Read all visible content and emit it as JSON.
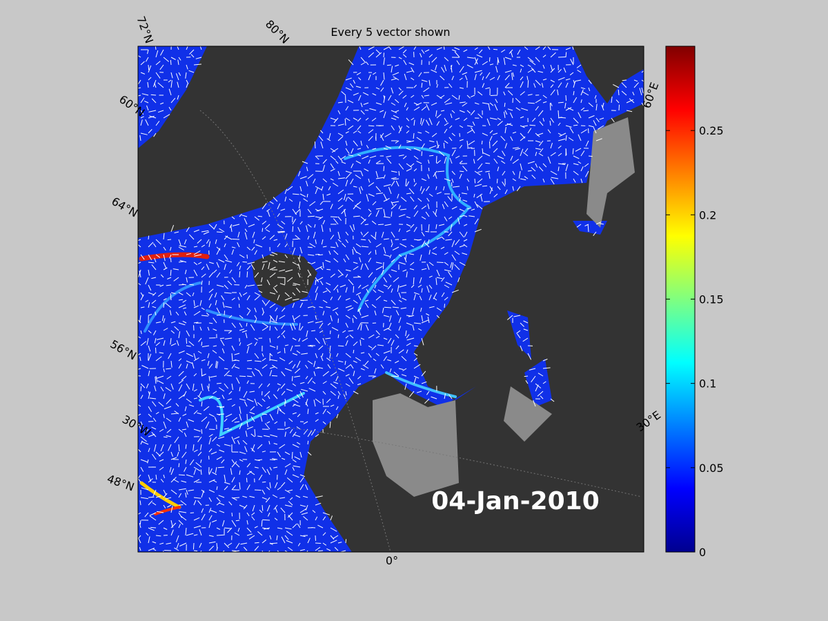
{
  "title": "Every 5 vector shown",
  "graticule_labels": [
    "72°N",
    "80°N",
    "60°N",
    "64°N",
    "56°N",
    "30°W",
    "48°N",
    "0°",
    "60°E",
    "30°E"
  ],
  "date_label": "04-Jan-2010",
  "colorbar": {
    "range": [
      0,
      0.3
    ],
    "ticks": [
      0,
      0.05,
      0.1,
      0.15,
      0.2,
      0.25
    ]
  }
}
